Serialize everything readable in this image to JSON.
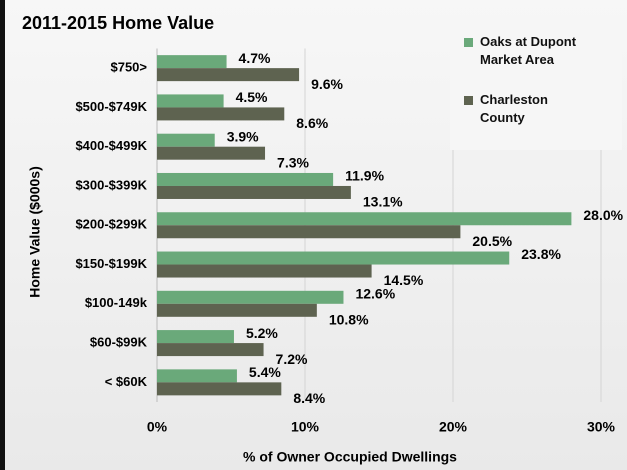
{
  "chart_data": {
    "type": "hbar",
    "title": "2011-2015  Home Value",
    "x_label": "% of Owner Occupied Dwellings",
    "y_label": "Home Value ($000s)",
    "categories": [
      "$750>",
      "$500-$749K",
      "$400-$499K",
      "$300-$399K",
      "$200-$299K",
      "$150-$199K",
      "$100-149k",
      "$60-$99K",
      "< $60K"
    ],
    "series": [
      {
        "name": "Oaks at Dupont Market Area",
        "color": "#6aa97a",
        "values": [
          4.7,
          4.5,
          3.9,
          11.9,
          28.0,
          23.8,
          12.6,
          5.2,
          5.4
        ],
        "value_labels": [
          "4.7%",
          "4.5%",
          "3.9%",
          "11.9%",
          "28.0%",
          "23.8%",
          "12.6%",
          "5.2%",
          "5.4%"
        ]
      },
      {
        "name": "Charleston County",
        "color": "#5e6350",
        "values": [
          9.6,
          8.6,
          7.3,
          13.1,
          20.5,
          14.5,
          10.8,
          7.2,
          8.4
        ],
        "value_labels": [
          "9.6%",
          "8.6%",
          "7.3%",
          "13.1%",
          "20.5%",
          "14.5%",
          "10.8%",
          "7.2%",
          "8.4%"
        ]
      }
    ],
    "xlim": [
      0,
      30
    ],
    "xticks": [
      {
        "value": 0,
        "label": "0%"
      },
      {
        "value": 10,
        "label": "10%"
      },
      {
        "value": 20,
        "label": "20%"
      },
      {
        "value": 30,
        "label": "30%"
      }
    ],
    "grid": true,
    "legend": "top-right"
  }
}
